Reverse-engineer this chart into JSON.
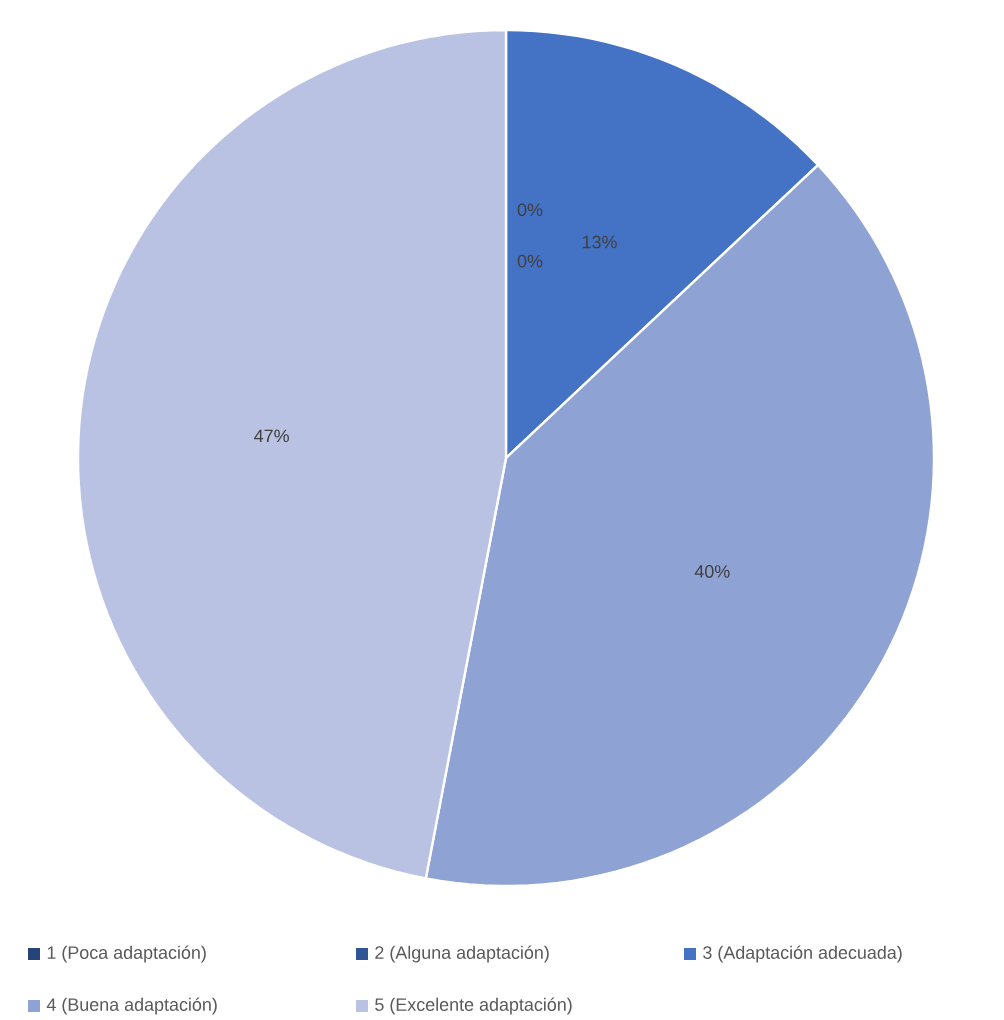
{
  "chart_data": {
    "type": "pie",
    "categories": [
      "1 (Poca adaptación)",
      "2 (Alguna adaptación)",
      "3 (Adaptación adecuada)",
      "4 (Buena adaptación)",
      "5 (Excelente adaptación)"
    ],
    "values": [
      0,
      0,
      13,
      40,
      47
    ],
    "colors": [
      "#264478",
      "#2f5597",
      "#4472c4",
      "#8fa2d4",
      "#b9c2e3"
    ],
    "value_labels": [
      "0%",
      "0%",
      "13%",
      "40%",
      "47%"
    ],
    "legend": "bottom"
  }
}
